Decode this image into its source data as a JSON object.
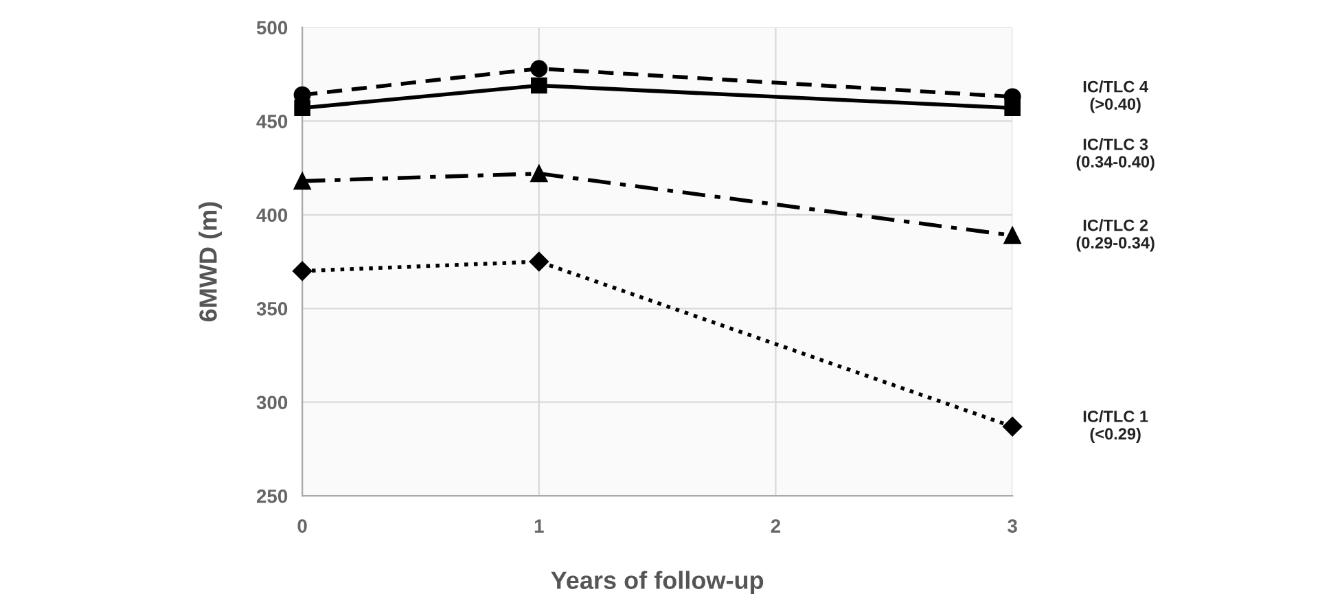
{
  "chart_data": {
    "type": "line",
    "xlabel": "Years of follow-up",
    "ylabel": "6MWD (m)",
    "x": [
      0,
      1,
      3
    ],
    "series": [
      {
        "name": "IC/TLC 4\n(>0.40)",
        "color": "#000000",
        "values": [
          464,
          478,
          463
        ],
        "marker": "circle",
        "line_style": "dashed"
      },
      {
        "name": "IC/TLC 3\n(0.34-0.40)",
        "color": "#000000",
        "values": [
          457,
          469,
          457
        ],
        "marker": "square",
        "line_style": "solid"
      },
      {
        "name": "IC/TLC 2\n(0.29-0.34)",
        "color": "#000000",
        "values": [
          418,
          422,
          389
        ],
        "marker": "triangle",
        "line_style": "dashdot"
      },
      {
        "name": "IC/TLC 1\n(<0.29)",
        "color": "#000000",
        "values": [
          370,
          375,
          287
        ],
        "marker": "diamond",
        "line_style": "dotted"
      }
    ],
    "xlim": [
      0,
      3
    ],
    "xticks": [
      0,
      1,
      2,
      3
    ],
    "ylim": [
      250,
      500
    ],
    "yticks": [
      250,
      300,
      350,
      400,
      450,
      500
    ],
    "grid": true,
    "legend": false
  }
}
